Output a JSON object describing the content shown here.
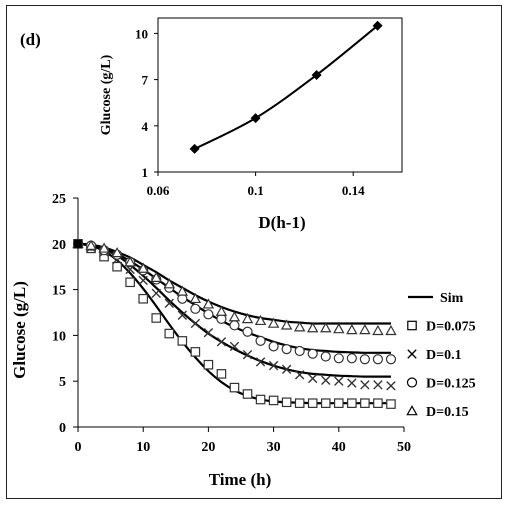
{
  "panel_label": "(d)",
  "chart_data": [
    {
      "type": "line",
      "title": "",
      "xlabel": "D(h-1)",
      "ylabel": "Glucose (g/L)",
      "xlim": [
        0.06,
        0.16
      ],
      "ylim": [
        1,
        11
      ],
      "xticks": [
        "0.06",
        "0.1",
        "0.14"
      ],
      "yticks": [
        "1",
        "4",
        "7",
        "10"
      ],
      "x": [
        0.075,
        0.1,
        0.125,
        0.15
      ],
      "series": [
        {
          "name": "",
          "values": [
            2.5,
            4.5,
            7.3,
            10.5
          ],
          "marker": "diamond"
        }
      ]
    },
    {
      "type": "scatter",
      "title": "",
      "xlabel": "Time (h)",
      "ylabel": "Glucose (g/L)",
      "xlim": [
        0,
        50
      ],
      "ylim": [
        0,
        25
      ],
      "xticks": [
        "0",
        "10",
        "20",
        "30",
        "40",
        "50"
      ],
      "yticks": [
        "0",
        "5",
        "10",
        "15",
        "20",
        "25"
      ],
      "legend_position": "right",
      "legend": [
        "Sim",
        "D=0.075",
        "D=0.1",
        "D=0.125",
        "D=0.15"
      ],
      "simulation_lines": [
        {
          "x": [
            0,
            2,
            4,
            6,
            8,
            10,
            12,
            14,
            16,
            18,
            20,
            22,
            24,
            26,
            28,
            30,
            32,
            34,
            36,
            38,
            40,
            42,
            44,
            46,
            48
          ],
          "values": [
            20,
            19.8,
            19.2,
            18.2,
            16.8,
            15.1,
            13.2,
            11.2,
            9.3,
            7.6,
            6.1,
            4.9,
            4.0,
            3.4,
            3.0,
            2.8,
            2.7,
            2.65,
            2.6,
            2.6,
            2.6,
            2.6,
            2.6,
            2.6,
            2.6
          ]
        },
        {
          "x": [
            0,
            2,
            4,
            6,
            8,
            10,
            12,
            14,
            16,
            18,
            20,
            22,
            24,
            26,
            28,
            30,
            32,
            34,
            36,
            38,
            40,
            42,
            44,
            46,
            48
          ],
          "values": [
            20,
            19.8,
            19.4,
            18.7,
            17.7,
            16.5,
            15.2,
            13.8,
            12.5,
            11.3,
            10.2,
            9.3,
            8.5,
            7.8,
            7.2,
            6.7,
            6.3,
            6.0,
            5.8,
            5.7,
            5.6,
            5.55,
            5.5,
            5.5,
            5.5
          ]
        },
        {
          "x": [
            0,
            2,
            4,
            6,
            8,
            10,
            12,
            14,
            16,
            18,
            20,
            22,
            24,
            26,
            28,
            30,
            32,
            34,
            36,
            38,
            40,
            42,
            44,
            46,
            48
          ],
          "values": [
            20,
            19.9,
            19.5,
            18.9,
            18.1,
            17.2,
            16.2,
            15.2,
            14.2,
            13.3,
            12.4,
            11.6,
            10.9,
            10.3,
            9.8,
            9.3,
            8.9,
            8.6,
            8.4,
            8.3,
            8.2,
            8.15,
            8.1,
            8.1,
            8.1
          ]
        },
        {
          "x": [
            0,
            2,
            4,
            6,
            8,
            10,
            12,
            14,
            16,
            18,
            20,
            22,
            24,
            26,
            28,
            30,
            32,
            34,
            36,
            38,
            40,
            42,
            44,
            46,
            48
          ],
          "values": [
            20,
            19.9,
            19.6,
            19.1,
            18.5,
            17.7,
            16.9,
            16.0,
            15.2,
            14.4,
            13.7,
            13.1,
            12.6,
            12.2,
            11.9,
            11.7,
            11.5,
            11.4,
            11.3,
            11.3,
            11.3,
            11.3,
            11.3,
            11.3,
            11.3
          ]
        }
      ],
      "series": [
        {
          "name": "D=0.075",
          "marker": "square",
          "x": [
            0,
            2,
            4,
            6,
            8,
            10,
            12,
            14,
            16,
            18,
            20,
            22,
            24,
            26,
            28,
            30,
            32,
            34,
            36,
            38,
            40,
            42,
            44,
            46,
            48
          ],
          "values": [
            20,
            19.5,
            18.6,
            17.5,
            15.8,
            14.0,
            11.9,
            10.2,
            9.4,
            8.2,
            6.8,
            5.8,
            4.3,
            3.6,
            3.0,
            2.9,
            2.7,
            2.6,
            2.6,
            2.6,
            2.6,
            2.6,
            2.6,
            2.6,
            2.5
          ]
        },
        {
          "name": "D=0.1",
          "marker": "cross",
          "x": [
            0,
            2,
            4,
            6,
            8,
            10,
            12,
            14,
            16,
            18,
            20,
            22,
            24,
            26,
            28,
            30,
            32,
            34,
            36,
            38,
            40,
            42,
            44,
            46,
            48
          ],
          "values": [
            20,
            19.6,
            19.1,
            18.3,
            17.2,
            16.0,
            14.6,
            13.5,
            12.2,
            11.3,
            10.3,
            9.3,
            8.8,
            7.9,
            7.1,
            6.7,
            6.3,
            5.7,
            5.3,
            5.1,
            5.0,
            4.8,
            4.6,
            4.6,
            4.5
          ]
        },
        {
          "name": "D=0.125",
          "marker": "circle",
          "x": [
            0,
            2,
            4,
            6,
            8,
            10,
            12,
            14,
            16,
            18,
            20,
            22,
            24,
            26,
            28,
            30,
            32,
            34,
            36,
            38,
            40,
            42,
            44,
            46,
            48
          ],
          "values": [
            20,
            19.8,
            19.3,
            18.8,
            18.0,
            17.1,
            16.1,
            15.2,
            14.0,
            12.9,
            12.3,
            11.8,
            11.1,
            10.4,
            9.4,
            8.8,
            8.5,
            8.3,
            8.0,
            7.7,
            7.5,
            7.5,
            7.4,
            7.4,
            7.4
          ]
        },
        {
          "name": "D=0.15",
          "marker": "triangle",
          "x": [
            0,
            2,
            4,
            6,
            8,
            10,
            12,
            14,
            16,
            18,
            20,
            22,
            24,
            26,
            28,
            30,
            32,
            34,
            36,
            38,
            40,
            42,
            44,
            46,
            48
          ],
          "values": [
            20,
            19.8,
            19.5,
            19.0,
            18.0,
            17.3,
            16.3,
            15.6,
            14.8,
            14.0,
            13.4,
            12.6,
            12.0,
            11.8,
            11.6,
            11.3,
            11.1,
            10.9,
            10.8,
            10.8,
            10.7,
            10.6,
            10.6,
            10.5,
            10.5
          ]
        }
      ]
    }
  ]
}
